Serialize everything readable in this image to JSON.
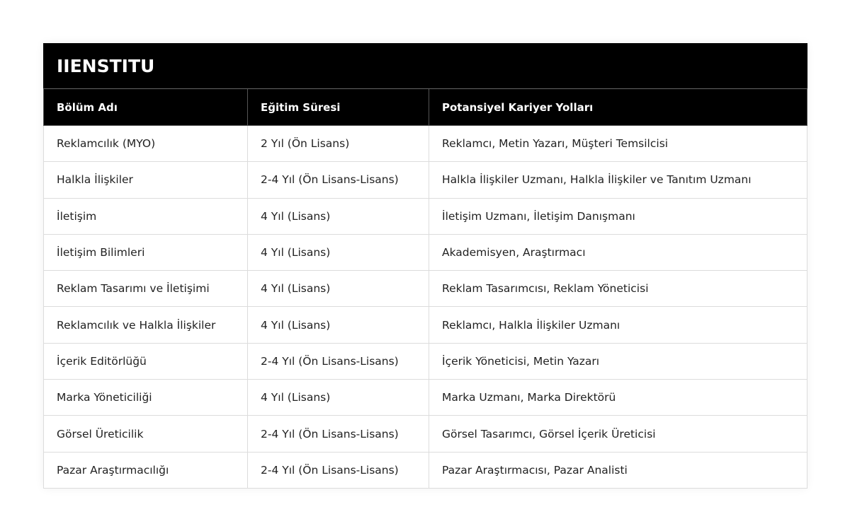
{
  "title": "IIENSTITU",
  "columns": [
    "Bölüm Adı",
    "Eğitim Süresi",
    "Potansiyel Kariyer Yolları"
  ],
  "rows": [
    [
      "Reklamcılık (MYO)",
      "2 Yıl (Ön Lisans)",
      "Reklamcı, Metin Yazarı, Müşteri Temsilcisi"
    ],
    [
      "Halkla İlişkiler",
      "2-4 Yıl (Ön Lisans-Lisans)",
      "Halkla İlişkiler Uzmanı, Halkla İlişkiler ve Tanıtım Uzmanı"
    ],
    [
      "İletişim",
      "4 Yıl (Lisans)",
      "İletişim Uzmanı, İletişim Danışmanı"
    ],
    [
      "İletişim Bilimleri",
      "4 Yıl (Lisans)",
      "Akademisyen, Araştırmacı"
    ],
    [
      "Reklam Tasarımı ve İletişimi",
      "4 Yıl (Lisans)",
      "Reklam Tasarımcısı, Reklam Yöneticisi"
    ],
    [
      "Reklamcılık ve Halkla İlişkiler",
      "4 Yıl (Lisans)",
      "Reklamcı, Halkla İlişkiler Uzmanı"
    ],
    [
      "İçerik Editörlüğü",
      "2-4 Yıl (Ön Lisans-Lisans)",
      "İçerik Yöneticisi, Metin Yazarı"
    ],
    [
      "Marka Yöneticiliği",
      "4 Yıl (Lisans)",
      "Marka Uzmanı, Marka Direktörü"
    ],
    [
      "Görsel Üreticilik",
      "2-4 Yıl (Ön Lisans-Lisans)",
      "Görsel Tasarımcı, Görsel İçerik Üreticisi"
    ],
    [
      "Pazar Araştırmacılığı",
      "2-4 Yıl (Ön Lisans-Lisans)",
      "Pazar Araştırmacısı, Pazar Analisti"
    ]
  ]
}
